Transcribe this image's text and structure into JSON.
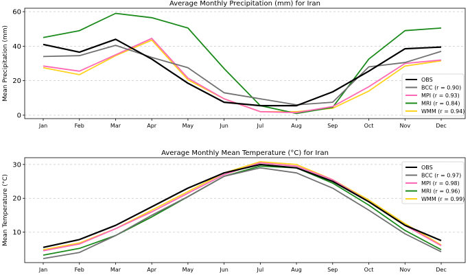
{
  "chart_data": [
    {
      "type": "line",
      "title": "Average Monthly Precipitation (mm) for Iran",
      "xlabel": "",
      "ylabel": "Mean Precipitation (mm)",
      "categories": [
        "Jan",
        "Feb",
        "Mar",
        "Apr",
        "May",
        "Jun",
        "Jul",
        "Aug",
        "Sep",
        "Oct",
        "Nov",
        "Dec"
      ],
      "ylim": [
        -2,
        62
      ],
      "yticks": [
        0,
        20,
        40,
        60
      ],
      "grid": "y-dashed",
      "legend_position": "lower-right",
      "series": [
        {
          "name": "OBS",
          "color": "#000000",
          "values": [
            41,
            36.5,
            44,
            32.5,
            18.5,
            7.5,
            5.5,
            5.5,
            13.5,
            25.5,
            38.5,
            39.5
          ]
        },
        {
          "name": "BCC (r = 0.90)",
          "color": "#707070",
          "values": [
            34,
            34.5,
            40.5,
            33.5,
            27.5,
            13,
            9.5,
            6,
            7.5,
            28,
            30.5,
            37
          ]
        },
        {
          "name": "MPI (r = 0.93)",
          "color": "#ff69b4",
          "values": [
            28.5,
            25.5,
            35,
            44.5,
            21.5,
            9.5,
            2,
            1.5,
            5,
            16.5,
            30,
            32
          ]
        },
        {
          "name": "MRI (r = 0.84)",
          "color": "#1a8a1a",
          "values": [
            45,
            49,
            59,
            56.5,
            50.5,
            27,
            5.5,
            1,
            4.5,
            32.5,
            49,
            50.5
          ]
        },
        {
          "name": "WMM (r = 0.94)",
          "color": "#ffd21f",
          "values": [
            27.5,
            23.5,
            34.5,
            43.5,
            20.5,
            9.5,
            2,
            2,
            4,
            14,
            28.5,
            31.5
          ]
        }
      ]
    },
    {
      "type": "line",
      "title": "Average Monthly Mean Temperature (°C) for Iran",
      "xlabel": "",
      "ylabel": "Mean Temperature (°C)",
      "categories": [
        "Jan",
        "Feb",
        "Mar",
        "Apr",
        "May",
        "Jun",
        "Jul",
        "Aug",
        "Sep",
        "Oct",
        "Nov",
        "Dec"
      ],
      "ylim": [
        1,
        32
      ],
      "yticks": [
        10,
        20,
        30
      ],
      "grid": "y-dashed",
      "legend_position": "upper-right",
      "series": [
        {
          "name": "OBS",
          "color": "#000000",
          "values": [
            5.5,
            7.8,
            12,
            17.5,
            23,
            27.5,
            30,
            29,
            25,
            19,
            12,
            7.5
          ]
        },
        {
          "name": "BCC (r = 0.97)",
          "color": "#707070",
          "values": [
            2.2,
            4,
            9,
            15,
            20.5,
            26.5,
            29,
            27.5,
            23,
            16.5,
            9.5,
            4.2
          ]
        },
        {
          "name": "MPI (r = 0.98)",
          "color": "#ff69b4",
          "values": [
            4.5,
            6.5,
            11,
            16,
            21.5,
            27,
            30.5,
            29.5,
            25.5,
            19,
            12,
            6
          ]
        },
        {
          "name": "MRI (r = 0.96)",
          "color": "#1a8a1a",
          "values": [
            3.2,
            5.2,
            9,
            14.5,
            20.5,
            26.5,
            29.5,
            29,
            24.5,
            18,
            10.5,
            4.8
          ]
        },
        {
          "name": "WMM (r = 0.99)",
          "color": "#ffd21f",
          "values": [
            4.8,
            6.8,
            11,
            16.5,
            22,
            27.5,
            30.8,
            30,
            25.5,
            19.5,
            12.5,
            6.2
          ]
        }
      ]
    }
  ]
}
